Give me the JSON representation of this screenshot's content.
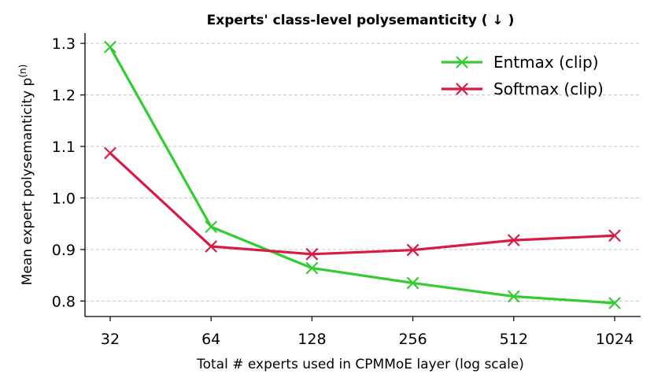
{
  "chart_data": {
    "type": "line",
    "title": "Experts' class-level polysemanticity ( ↓ )",
    "xlabel": "Total # experts used in CPMMoE layer (log scale)",
    "ylabel": "Mean expert polysemanticity p",
    "ylabel_superscript": "(n)",
    "x": [
      32,
      64,
      128,
      256,
      512,
      1024
    ],
    "x_scale": "log2",
    "x_tick_labels": [
      "32",
      "64",
      "128",
      "256",
      "512",
      "1024"
    ],
    "ylim": [
      0.77,
      1.32
    ],
    "y_ticks": [
      0.8,
      0.9,
      1.0,
      1.1,
      1.2,
      1.3
    ],
    "y_tick_labels": [
      "0.8",
      "0.9",
      "1.0",
      "1.1",
      "1.2",
      "1.3"
    ],
    "grid": "horizontal dashed",
    "legend_position": "top-right",
    "series": [
      {
        "name": "Entmax (clip)",
        "color": "#33cc33",
        "marker": "x",
        "values": [
          1.293,
          0.944,
          0.864,
          0.835,
          0.809,
          0.796
        ]
      },
      {
        "name": "Softmax (clip)",
        "color": "#d81b45",
        "marker": "x",
        "values": [
          1.087,
          0.906,
          0.891,
          0.899,
          0.918,
          0.927
        ]
      }
    ]
  }
}
